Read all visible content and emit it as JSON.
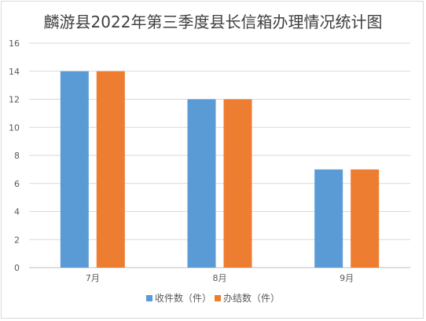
{
  "chart_data": {
    "type": "bar",
    "title": "麟游县2022年第三季度县长信箱办理情况统计图",
    "categories": [
      "7月",
      "8月",
      "9月"
    ],
    "series": [
      {
        "name": "收件数（件）",
        "values": [
          14,
          12,
          7
        ],
        "color": "#5b9bd5"
      },
      {
        "name": "办结数（件）",
        "values": [
          14,
          12,
          7
        ],
        "color": "#ed7d31"
      }
    ],
    "ylim": [
      0,
      16
    ],
    "yticks": [
      "0",
      "2",
      "4",
      "6",
      "8",
      "10",
      "12",
      "14",
      "16"
    ],
    "grid": true,
    "legend_position": "bottom"
  }
}
